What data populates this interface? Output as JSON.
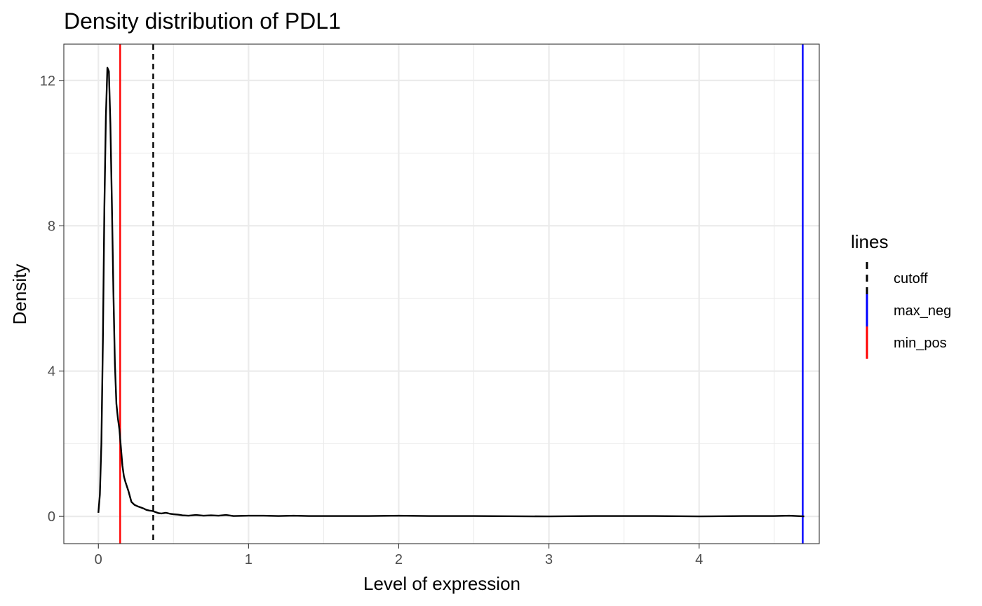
{
  "chart_data": {
    "type": "line",
    "title": "Density distribution of PDL1",
    "xlabel": "Level of expression",
    "ylabel": "Density",
    "xlim": [
      -0.23,
      4.8
    ],
    "ylim": [
      -0.75,
      13.0
    ],
    "x_ticks": [
      0,
      1,
      2,
      3,
      4
    ],
    "y_ticks": [
      0,
      4,
      8,
      12
    ],
    "x_tick_labels": [
      "0",
      "1",
      "2",
      "3",
      "4"
    ],
    "y_tick_labels": [
      "0",
      "4",
      "8",
      "12"
    ],
    "grid": true,
    "density": {
      "x": [
        0.0,
        0.01,
        0.02,
        0.03,
        0.04,
        0.05,
        0.06,
        0.07,
        0.08,
        0.09,
        0.1,
        0.11,
        0.12,
        0.13,
        0.14,
        0.15,
        0.16,
        0.17,
        0.18,
        0.2,
        0.22,
        0.24,
        0.26,
        0.28,
        0.3,
        0.32,
        0.34,
        0.36,
        0.38,
        0.4,
        0.42,
        0.45,
        0.48,
        0.5,
        0.53,
        0.56,
        0.6,
        0.65,
        0.7,
        0.75,
        0.8,
        0.85,
        0.9,
        1.0,
        1.1,
        1.2,
        1.3,
        1.4,
        1.6,
        1.8,
        2.0,
        2.2,
        2.5,
        3.0,
        3.3,
        3.7,
        4.0,
        4.3,
        4.5,
        4.6,
        4.7
      ],
      "y": [
        0.1,
        0.6,
        2.0,
        4.8,
        8.5,
        11.0,
        12.35,
        12.25,
        10.8,
        8.6,
        6.2,
        4.2,
        3.1,
        2.7,
        2.4,
        1.9,
        1.4,
        1.1,
        0.95,
        0.7,
        0.4,
        0.32,
        0.28,
        0.25,
        0.22,
        0.18,
        0.16,
        0.15,
        0.12,
        0.09,
        0.08,
        0.1,
        0.07,
        0.06,
        0.05,
        0.03,
        0.02,
        0.04,
        0.02,
        0.03,
        0.02,
        0.04,
        0.01,
        0.02,
        0.02,
        0.01,
        0.02,
        0.01,
        0.01,
        0.01,
        0.02,
        0.01,
        0.01,
        0.0,
        0.01,
        0.01,
        0.0,
        0.01,
        0.01,
        0.02,
        0.0
      ],
      "color": "#000000"
    },
    "reference_lines": [
      {
        "name": "cutoff",
        "x": 0.365,
        "color": "#000000",
        "dash": "dashed"
      },
      {
        "name": "max_neg",
        "x": 4.69,
        "color": "#0000ff",
        "dash": "solid"
      },
      {
        "name": "min_pos",
        "x": 0.145,
        "color": "#ff0000",
        "dash": "solid"
      }
    ],
    "legend": {
      "title": "lines",
      "placement": "right",
      "entries": [
        {
          "label": "cutoff",
          "color": "#000000",
          "dash": "dashed"
        },
        {
          "label": "max_neg",
          "color": "#0000ff",
          "dash": "solid"
        },
        {
          "label": "min_pos",
          "color": "#ff0000",
          "dash": "solid"
        }
      ]
    }
  }
}
